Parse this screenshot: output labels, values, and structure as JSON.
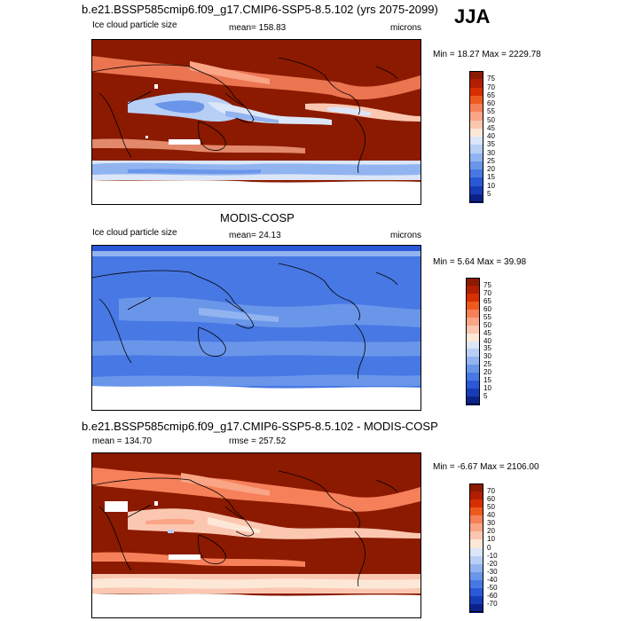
{
  "season": "JJA",
  "panels": [
    {
      "id": "model",
      "title": "b.e21.BSSP585cmip6.f09_g17.CMIP6-SSP5-8.5.102 (yrs 2075-2099)",
      "left_label": "Ice cloud particle size",
      "center_label": "mean= 158.83",
      "right_label": "microns",
      "minmax": "Min =  18.27 Max = 2229.78",
      "colorbar_labels": [
        "75",
        "70",
        "65",
        "60",
        "55",
        "50",
        "45",
        "40",
        "35",
        "30",
        "25",
        "20",
        "15",
        "10",
        "5"
      ],
      "colorbar_colors": [
        "#8b1a00",
        "#b21e00",
        "#d72f00",
        "#ee5a1e",
        "#f5805a",
        "#f9a586",
        "#fbc7b0",
        "#fde8d8",
        "#dbe6f8",
        "#b8cff5",
        "#91b4f0",
        "#6a96ea",
        "#4878e4",
        "#2a58d6",
        "#163cb8",
        "#0b228a"
      ]
    },
    {
      "id": "obs",
      "title": "MODIS-COSP",
      "left_label": "Ice cloud particle size",
      "center_label": "mean=  24.13",
      "right_label": "microns",
      "minmax": "Min =   5.64 Max =  39.98",
      "colorbar_labels": [
        "75",
        "70",
        "65",
        "60",
        "55",
        "50",
        "45",
        "40",
        "35",
        "30",
        "25",
        "20",
        "15",
        "10",
        "5"
      ],
      "colorbar_colors": [
        "#8b1a00",
        "#b21e00",
        "#d72f00",
        "#ee5a1e",
        "#f5805a",
        "#f9a586",
        "#fbc7b0",
        "#fde8d8",
        "#dbe6f8",
        "#b8cff5",
        "#91b4f0",
        "#6a96ea",
        "#4878e4",
        "#2a58d6",
        "#163cb8",
        "#0b228a"
      ]
    },
    {
      "id": "diff",
      "title": "b.e21.BSSP585cmip6.f09_g17.CMIP6-SSP5-8.5.102 - MODIS-COSP",
      "left_label": "mean = 134.70",
      "center_label": "rmse = 257.52",
      "right_label": "",
      "minmax": "Min =  -6.67 Max = 2106.00",
      "colorbar_labels": [
        "70",
        "60",
        "50",
        "40",
        "30",
        "20",
        "10",
        "0",
        "-10",
        "-20",
        "-30",
        "-40",
        "-50",
        "-60",
        "-70"
      ],
      "colorbar_colors": [
        "#8b1a00",
        "#b21e00",
        "#d72f00",
        "#ee5a1e",
        "#f5805a",
        "#f9a586",
        "#fbc7b0",
        "#fde8d8",
        "#dbe6f8",
        "#b8cff5",
        "#91b4f0",
        "#6a96ea",
        "#4878e4",
        "#2a58d6",
        "#163cb8",
        "#0b228a"
      ]
    }
  ],
  "colors": {
    "deep_red": "#8b1a00",
    "mid_red": "#d72f00",
    "light_salmon": "#f9a586",
    "pale": "#fde8d8",
    "light_blue": "#b8cff5",
    "mid_blue": "#6a96ea",
    "blue": "#4878e4",
    "dark_blue": "#2a58d6"
  }
}
